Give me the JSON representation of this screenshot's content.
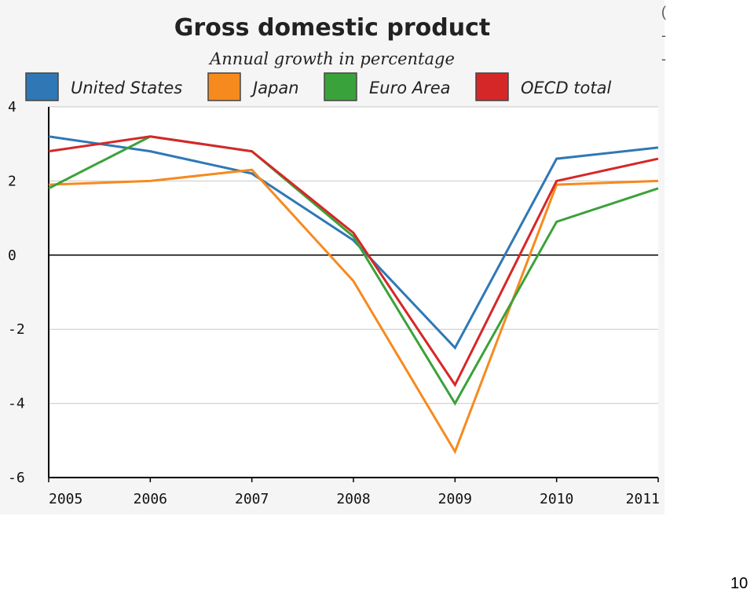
{
  "chart_data": {
    "type": "line",
    "title": "Gross domestic product",
    "subtitle": "Annual growth in percentage",
    "x": [
      "2005",
      "2006",
      "2007",
      "2008",
      "2009",
      "2010",
      "2011"
    ],
    "series": [
      {
        "name": "United States",
        "color": "#2f78b5",
        "values": [
          3.2,
          2.8,
          2.2,
          0.4,
          -2.5,
          2.6,
          2.9
        ]
      },
      {
        "name": "Japan",
        "color": "#f68a1e",
        "values": [
          1.9,
          2.0,
          2.3,
          -0.7,
          -5.3,
          1.9,
          2.0
        ]
      },
      {
        "name": "Euro Area",
        "color": "#3aa23a",
        "values": [
          1.8,
          3.2,
          2.8,
          0.5,
          -4.0,
          0.9,
          1.8
        ]
      },
      {
        "name": "OECD total",
        "color": "#d62728",
        "values": [
          2.8,
          3.2,
          2.8,
          0.6,
          -3.5,
          2.0,
          2.6
        ]
      }
    ],
    "ylim": [
      -6,
      4
    ],
    "yticks": [
      "4",
      "2",
      "0",
      "-2",
      "-4",
      "-6"
    ],
    "ytick_values": [
      4,
      2,
      0,
      -2,
      -4,
      -6
    ],
    "grid": true,
    "legend_position": "top"
  },
  "page": {
    "number": "10"
  }
}
